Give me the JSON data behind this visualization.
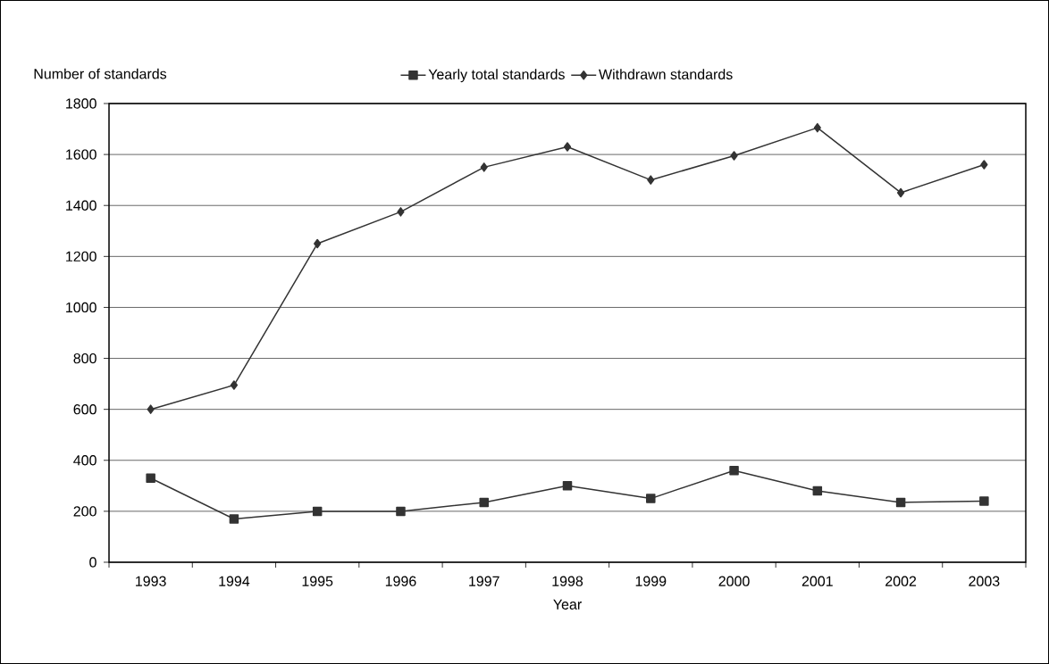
{
  "chart_data": {
    "type": "line",
    "xlabel": "Year",
    "ylabel": "Number of standards",
    "categories": [
      "1993",
      "1994",
      "1995",
      "1996",
      "1997",
      "1998",
      "1999",
      "2000",
      "2001",
      "2002",
      "2003"
    ],
    "series": [
      {
        "name": "Yearly total standards",
        "color": "#333333",
        "marker": "square",
        "values": [
          330,
          170,
          200,
          200,
          235,
          300,
          250,
          360,
          280,
          235,
          240
        ]
      },
      {
        "name": "Withdrawn standards",
        "color": "#333333",
        "marker": "diamond",
        "values": [
          600,
          695,
          1250,
          1375,
          1550,
          1630,
          1500,
          1595,
          1705,
          1450,
          1560
        ]
      }
    ],
    "ylim": [
      0,
      1800
    ],
    "yticks": [
      0,
      200,
      400,
      600,
      800,
      1000,
      1200,
      1400,
      1600,
      1800
    ],
    "grid": "y",
    "legend": "top",
    "line_style": "solid"
  }
}
